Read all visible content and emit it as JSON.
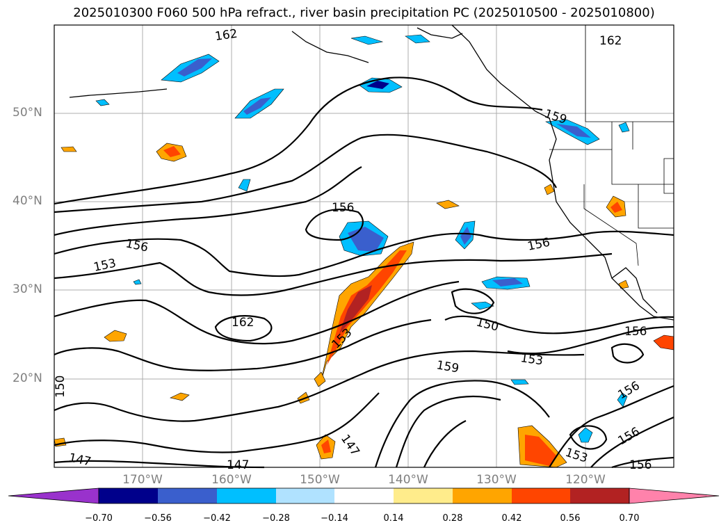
{
  "title": "2025010300 F060 500 hPa refract., river basin precipitation PC (2025010500 - 2025010800)",
  "lon_labels": [
    "170°W",
    "160°W",
    "150°W",
    "140°W",
    "130°W",
    "120°W"
  ],
  "lat_labels": [
    "50°N",
    "40°N",
    "30°N",
    "20°N"
  ],
  "contour_labels": [
    "162",
    "162",
    "159",
    "156",
    "156",
    "156",
    "153",
    "162",
    "150",
    "153",
    "153",
    "159",
    "150",
    "156",
    "156",
    "156",
    "147",
    "147",
    "153",
    "147",
    "156"
  ],
  "colorbar": {
    "ticks": [
      "−0.70",
      "−0.56",
      "−0.42",
      "−0.28",
      "−0.14",
      "0.14",
      "0.28",
      "0.42",
      "0.56",
      "0.70"
    ],
    "colors": [
      "#9932cc",
      "#00008b",
      "#3a5fcd",
      "#00bfff",
      "#b0e2ff",
      "#ffffff",
      "#ffec8b",
      "#ffa500",
      "#ff4500",
      "#b22222",
      "#ff82ab"
    ]
  },
  "colors": {
    "negative_strong": "#3a5fcd",
    "negative_mid": "#00bfff",
    "positive_mid": "#ffa500",
    "positive_strong": "#ff4500"
  }
}
